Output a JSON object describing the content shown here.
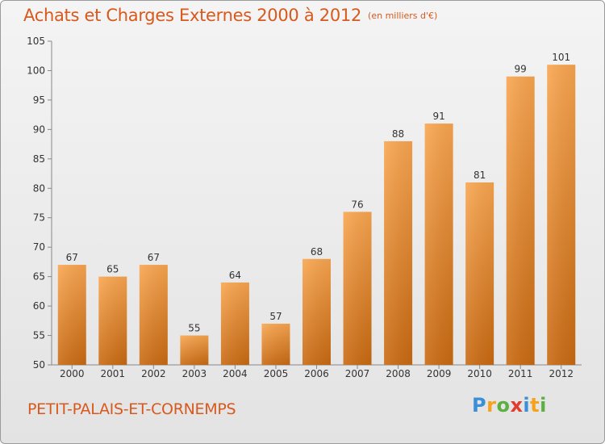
{
  "header": {
    "title": "Achats et Charges Externes 2000 à 2012",
    "subtitle": "(en milliers d'€)"
  },
  "footer": {
    "commune": "PETIT-PALAIS-ET-CORNEMPS",
    "logo_letters": [
      "P",
      "r",
      "o",
      "x",
      "i",
      "t",
      "i"
    ],
    "logo_colors": [
      "#3a8fd8",
      "#f7a21a",
      "#5bb040",
      "#e23c2f",
      "#3a8fd8",
      "#f7a21a",
      "#5bb040"
    ]
  },
  "chart_data": {
    "type": "bar",
    "categories": [
      "2000",
      "2001",
      "2002",
      "2003",
      "2004",
      "2005",
      "2006",
      "2007",
      "2008",
      "2009",
      "2010",
      "2011",
      "2012"
    ],
    "values": [
      67,
      65,
      67,
      55,
      64,
      57,
      68,
      76,
      88,
      91,
      81,
      99,
      101
    ],
    "title": "Achats et Charges Externes 2000 à 2012",
    "xlabel": "",
    "ylabel": "",
    "ylim": [
      50,
      105
    ],
    "yticks": [
      50,
      55,
      60,
      65,
      70,
      75,
      80,
      85,
      90,
      95,
      100,
      105
    ],
    "grid": false,
    "legend": "none",
    "colors": {
      "bar_light": "#f9a650",
      "bar_dark": "#c96a12",
      "label_text": "#333333",
      "axis": "#888888"
    }
  }
}
